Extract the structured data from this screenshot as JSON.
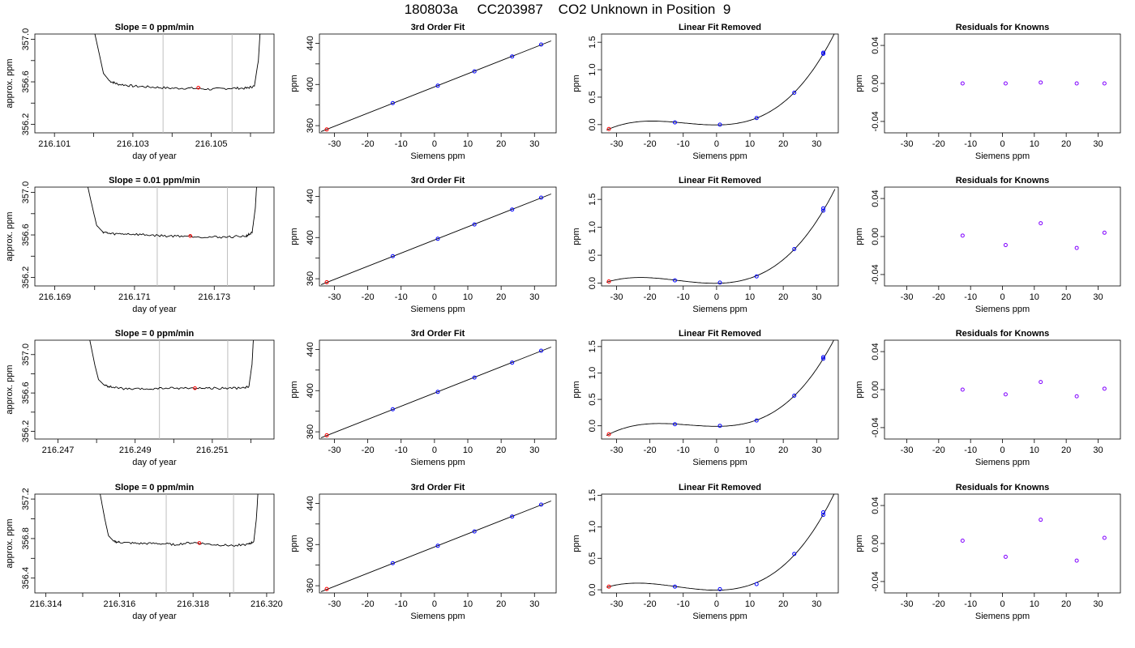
{
  "title": "180803a     CC203987    CO2 Unknown in Position  9",
  "colors": {
    "fit_line": "#000000",
    "blue_points": "#0000ff",
    "red_points": "#ff0000",
    "residual_points": "#8000ff",
    "marker_lines": "#bebebe"
  },
  "chart_data": [
    {
      "type": "line",
      "row": 1,
      "panel": "time series",
      "title": "Slope =  0  ppm/min",
      "xlabel": "day of year",
      "ylabel": "approx. ppm",
      "xlim": [
        216.1005,
        216.1066
      ],
      "ylim": [
        356.12,
        357.05
      ],
      "xticks": [
        216.101,
        216.102,
        216.103,
        216.104,
        216.105,
        216.106
      ],
      "xtick_labels": [
        "216.101",
        "",
        "216.103",
        "",
        "216.105",
        ""
      ],
      "yticks": [
        356.2,
        356.4,
        356.6,
        356.8,
        357.0
      ],
      "ytick_labels": [
        "356.2",
        "",
        "356.6",
        "",
        "357.0"
      ],
      "vlines": [
        216.10377,
        216.10553
      ],
      "series": [
        {
          "x": [
            216.102,
            216.10215,
            216.10225,
            216.1024,
            216.1026,
            216.103,
            216.1035,
            216.104,
            216.1045,
            216.105,
            216.1055,
            216.1059,
            216.1061,
            216.1062,
            216.10625
          ],
          "y": [
            357.1,
            356.85,
            356.68,
            356.61,
            356.58,
            356.56,
            356.55,
            356.54,
            356.54,
            356.53,
            356.54,
            356.54,
            356.56,
            356.8,
            357.1
          ]
        }
      ],
      "mean_point": [
        216.10467,
        356.545
      ]
    },
    {
      "type": "scatter",
      "row": 1,
      "panel": "fit",
      "title": "3rd Order Fit",
      "xlabel": "Siemens ppm",
      "ylabel": "ppm",
      "xlim": [
        -34.5,
        36.5
      ],
      "ylim": [
        353,
        449
      ],
      "xticks": [
        -30,
        -20,
        -10,
        0,
        10,
        20,
        30
      ],
      "yticks": [
        360,
        380,
        400,
        420,
        440
      ],
      "ytick_labels": [
        "360",
        "",
        "400",
        "",
        "440"
      ],
      "points": [
        [
          -12.5,
          381.9
        ],
        [
          1.0,
          398.8
        ],
        [
          12.0,
          412.7
        ],
        [
          23.3,
          427.2
        ],
        [
          32.0,
          438.8
        ]
      ],
      "unknown_point": [
        -32.3,
        356.3
      ],
      "fit_x": [
        -34,
        35
      ]
    },
    {
      "type": "scatter",
      "row": 1,
      "panel": "linear removed",
      "title": "Linear Fit Removed",
      "xlabel": "Siemens ppm",
      "ylabel": "ppm",
      "xlim": [
        -34.5,
        36.5
      ],
      "ylim": [
        -0.15,
        1.65
      ],
      "xticks": [
        -30,
        -20,
        -10,
        0,
        10,
        20,
        30
      ],
      "yticks": [
        0.0,
        0.5,
        1.0,
        1.5
      ],
      "ytick_labels": [
        "0.0",
        "0.5",
        "1.0",
        "1.5"
      ],
      "points": [
        [
          -12.5,
          0.04
        ],
        [
          1.0,
          0.0
        ],
        [
          12.0,
          0.12
        ],
        [
          23.3,
          0.58
        ],
        [
          32.0,
          1.29
        ],
        [
          32.0,
          1.31
        ]
      ],
      "unknown_point": [
        -32.3,
        -0.08
      ],
      "curve": [
        -0.1,
        -0.2,
        -0.2,
        -0.3,
        -0.32,
        -0.12
      ]
    },
    {
      "type": "scatter",
      "row": 1,
      "panel": "residuals",
      "title": "Residuals for Knowns",
      "xlabel": "Siemens ppm",
      "ylabel": "ppm",
      "xlim": [
        -37,
        37
      ],
      "ylim": [
        -0.052,
        0.052
      ],
      "xticks": [
        -30,
        -20,
        -10,
        0,
        10,
        20,
        30
      ],
      "yticks": [
        -0.04,
        0.0,
        0.04
      ],
      "ytick_labels": [
        "-0.04",
        "0.00",
        "0.04"
      ],
      "points": [
        [
          -12.5,
          0.0
        ],
        [
          1.0,
          0.0
        ],
        [
          12.0,
          0.001
        ],
        [
          23.3,
          0.0
        ],
        [
          32.0,
          0.0
        ]
      ]
    },
    {
      "type": "line",
      "row": 2,
      "panel": "time series",
      "title": "Slope =  0.01  ppm/min",
      "xlabel": "day of year",
      "ylabel": "approx. ppm",
      "xlim": [
        216.1685,
        216.1745
      ],
      "ylim": [
        356.12,
        357.05
      ],
      "xticks": [
        216.169,
        216.17,
        216.171,
        216.172,
        216.173,
        216.174
      ],
      "xtick_labels": [
        "216.169",
        "",
        "216.171",
        "",
        "216.173",
        ""
      ],
      "yticks": [
        356.2,
        356.4,
        356.6,
        356.8,
        357.0
      ],
      "ytick_labels": [
        "356.2",
        "",
        "356.6",
        "",
        "357.0"
      ],
      "vlines": [
        216.17157,
        216.17333
      ],
      "series": [
        {
          "x": [
            216.1698,
            216.16995,
            216.17005,
            216.1702,
            216.1704,
            216.1708,
            216.1713,
            216.1718,
            216.1723,
            216.1728,
            216.1733,
            216.1738,
            216.17395,
            216.17403,
            216.17407
          ],
          "y": [
            357.1,
            356.85,
            356.69,
            356.63,
            356.61,
            356.61,
            356.6,
            356.59,
            356.59,
            356.58,
            356.58,
            356.59,
            356.62,
            356.85,
            357.1
          ]
        }
      ],
      "mean_point": [
        216.1724,
        356.59
      ]
    },
    {
      "type": "scatter",
      "row": 2,
      "panel": "fit",
      "title": "3rd Order Fit",
      "xlabel": "Siemens ppm",
      "ylabel": "ppm",
      "xlim": [
        -34.5,
        36.5
      ],
      "ylim": [
        353,
        449
      ],
      "xticks": [
        -30,
        -20,
        -10,
        0,
        10,
        20,
        30
      ],
      "yticks": [
        360,
        380,
        400,
        420,
        440
      ],
      "ytick_labels": [
        "360",
        "",
        "400",
        "",
        "440"
      ],
      "points": [
        [
          -12.5,
          381.9
        ],
        [
          1.0,
          398.8
        ],
        [
          12.0,
          412.7
        ],
        [
          23.3,
          427.2
        ],
        [
          32.0,
          438.8
        ]
      ],
      "unknown_point": [
        -32.3,
        356.6
      ],
      "fit_x": [
        -34,
        35
      ]
    },
    {
      "type": "scatter",
      "row": 2,
      "panel": "linear removed",
      "title": "Linear Fit Removed",
      "xlabel": "Siemens ppm",
      "ylabel": "ppm",
      "xlim": [
        -34.5,
        36.5
      ],
      "ylim": [
        -0.05,
        1.72
      ],
      "xticks": [
        -30,
        -20,
        -10,
        0,
        10,
        20,
        30
      ],
      "yticks": [
        0.0,
        0.5,
        1.0,
        1.5
      ],
      "ytick_labels": [
        "0.0",
        "0.5",
        "1.0",
        "1.5"
      ],
      "points": [
        [
          -12.5,
          0.05
        ],
        [
          1.0,
          0.01
        ],
        [
          12.0,
          0.12
        ],
        [
          23.3,
          0.61
        ],
        [
          32.0,
          1.3
        ],
        [
          32.0,
          1.34
        ]
      ],
      "unknown_point": [
        -32.3,
        0.03
      ]
    },
    {
      "type": "scatter",
      "row": 2,
      "panel": "residuals",
      "title": "Residuals for Knowns",
      "xlabel": "Siemens ppm",
      "ylabel": "ppm",
      "xlim": [
        -37,
        37
      ],
      "ylim": [
        -0.052,
        0.052
      ],
      "xticks": [
        -30,
        -20,
        -10,
        0,
        10,
        20,
        30
      ],
      "yticks": [
        -0.04,
        0.0,
        0.04
      ],
      "ytick_labels": [
        "-0.04",
        "0.00",
        "0.04"
      ],
      "points": [
        [
          -12.5,
          0.001
        ],
        [
          1.0,
          -0.009
        ],
        [
          12.0,
          0.014
        ],
        [
          23.3,
          -0.012
        ],
        [
          32.0,
          0.004
        ]
      ]
    },
    {
      "type": "line",
      "row": 3,
      "panel": "time series",
      "title": "Slope =  0  ppm/min",
      "xlabel": "day of year",
      "ylabel": "approx. ppm",
      "xlim": [
        216.2464,
        216.2526
      ],
      "ylim": [
        356.12,
        357.15
      ],
      "xticks": [
        216.247,
        216.248,
        216.249,
        216.25,
        216.251,
        216.252
      ],
      "xtick_labels": [
        "216.247",
        "",
        "216.249",
        "",
        "216.251",
        ""
      ],
      "yticks": [
        356.2,
        356.4,
        356.6,
        356.8,
        357.0
      ],
      "ytick_labels": [
        "356.2",
        "",
        "356.6",
        "",
        "357.0"
      ],
      "vlines": [
        216.24963,
        216.2514
      ],
      "series": [
        {
          "x": [
            216.2478,
            216.24795,
            216.24805,
            216.2482,
            216.2484,
            216.2488,
            216.2493,
            216.2498,
            216.2503,
            216.2508,
            216.2513,
            216.2518,
            216.25195,
            216.25203,
            216.25207
          ],
          "y": [
            357.2,
            356.9,
            356.74,
            356.68,
            356.66,
            356.64,
            356.64,
            356.65,
            356.65,
            356.65,
            356.65,
            356.65,
            356.67,
            356.9,
            357.2
          ]
        }
      ],
      "mean_point": [
        216.25055,
        356.65
      ]
    },
    {
      "type": "scatter",
      "row": 3,
      "panel": "fit",
      "title": "3rd Order Fit",
      "xlabel": "Siemens ppm",
      "ylabel": "ppm",
      "xlim": [
        -34.5,
        36.5
      ],
      "ylim": [
        353,
        449
      ],
      "xticks": [
        -30,
        -20,
        -10,
        0,
        10,
        20,
        30
      ],
      "yticks": [
        360,
        380,
        400,
        420,
        440
      ],
      "ytick_labels": [
        "360",
        "",
        "400",
        "",
        "440"
      ],
      "points": [
        [
          -12.5,
          381.9
        ],
        [
          1.0,
          398.8
        ],
        [
          12.0,
          412.7
        ],
        [
          23.3,
          427.2
        ],
        [
          32.0,
          438.8
        ]
      ],
      "unknown_point": [
        -32.3,
        356.6
      ],
      "fit_x": [
        -34,
        35
      ]
    },
    {
      "type": "scatter",
      "row": 3,
      "panel": "linear removed",
      "title": "Linear Fit Removed",
      "xlabel": "Siemens ppm",
      "ylabel": "ppm",
      "xlim": [
        -34.5,
        36.5
      ],
      "ylim": [
        -0.25,
        1.62
      ],
      "xticks": [
        -30,
        -20,
        -10,
        0,
        10,
        20,
        30
      ],
      "yticks": [
        0.0,
        0.5,
        1.0,
        1.5
      ],
      "ytick_labels": [
        "0.0",
        "0.5",
        "1.0",
        "1.5"
      ],
      "points": [
        [
          -12.5,
          0.03
        ],
        [
          1.0,
          0.0
        ],
        [
          12.0,
          0.1
        ],
        [
          23.3,
          0.57
        ],
        [
          32.0,
          1.27
        ],
        [
          32.0,
          1.3
        ]
      ],
      "unknown_point": [
        -32.3,
        -0.16
      ]
    },
    {
      "type": "scatter",
      "row": 3,
      "panel": "residuals",
      "title": "Residuals for Knowns",
      "xlabel": "Siemens ppm",
      "ylabel": "ppm",
      "xlim": [
        -37,
        37
      ],
      "ylim": [
        -0.052,
        0.052
      ],
      "xticks": [
        -30,
        -20,
        -10,
        0,
        10,
        20,
        30
      ],
      "yticks": [
        -0.04,
        0.0,
        0.04
      ],
      "ytick_labels": [
        "-0.04",
        "0.00",
        "0.04"
      ],
      "points": [
        [
          -12.5,
          0.0
        ],
        [
          1.0,
          -0.005
        ],
        [
          12.0,
          0.008
        ],
        [
          23.3,
          -0.007
        ],
        [
          32.0,
          0.001
        ]
      ]
    },
    {
      "type": "line",
      "row": 4,
      "panel": "time series",
      "title": "Slope =  0  ppm/min",
      "xlabel": "day of year",
      "ylabel": "approx. ppm",
      "xlim": [
        216.3137,
        216.3202
      ],
      "ylim": [
        356.25,
        357.25
      ],
      "xticks": [
        216.314,
        216.315,
        216.316,
        216.317,
        216.318,
        216.319,
        216.32
      ],
      "xtick_labels": [
        "216.314",
        "",
        "216.316",
        "",
        "216.318",
        "",
        "216.320"
      ],
      "yticks": [
        356.4,
        356.6,
        356.8,
        357.0,
        357.2
      ],
      "ytick_labels": [
        "356.4",
        "",
        "356.8",
        "",
        "357.2"
      ],
      "vlines": [
        216.31727,
        216.3191
      ],
      "series": [
        {
          "x": [
            216.31545,
            216.3156,
            216.3157,
            216.31585,
            216.31605,
            216.3165,
            216.317,
            216.3175,
            216.318,
            216.3185,
            216.319,
            216.3195,
            216.31965,
            216.31972,
            216.31977
          ],
          "y": [
            357.3,
            357.0,
            356.83,
            356.77,
            356.76,
            356.75,
            356.75,
            356.74,
            356.76,
            356.74,
            356.73,
            356.74,
            356.77,
            357.0,
            357.3
          ]
        }
      ],
      "mean_point": [
        216.31817,
        356.755
      ]
    },
    {
      "type": "scatter",
      "row": 4,
      "panel": "fit",
      "title": "3rd Order Fit",
      "xlabel": "Siemens ppm",
      "ylabel": "ppm",
      "xlim": [
        -34.5,
        36.5
      ],
      "ylim": [
        353,
        449
      ],
      "xticks": [
        -30,
        -20,
        -10,
        0,
        10,
        20,
        30
      ],
      "yticks": [
        360,
        380,
        400,
        420,
        440
      ],
      "ytick_labels": [
        "360",
        "",
        "400",
        "",
        "440"
      ],
      "points": [
        [
          -12.5,
          381.9
        ],
        [
          1.0,
          398.8
        ],
        [
          12.0,
          412.7
        ],
        [
          23.3,
          427.2
        ],
        [
          32.0,
          438.8
        ]
      ],
      "unknown_point": [
        -32.3,
        356.8
      ],
      "fit_x": [
        -34,
        35
      ]
    },
    {
      "type": "scatter",
      "row": 4,
      "panel": "linear removed",
      "title": "Linear Fit Removed",
      "xlabel": "Siemens ppm",
      "ylabel": "ppm",
      "xlim": [
        -34.5,
        36.5
      ],
      "ylim": [
        -0.05,
        1.52
      ],
      "xticks": [
        -30,
        -20,
        -10,
        0,
        10,
        20,
        30
      ],
      "yticks": [
        0.0,
        0.5,
        1.0,
        1.5
      ],
      "ytick_labels": [
        "0.0",
        "0.5",
        "1.0",
        "1.5"
      ],
      "points": [
        [
          -12.5,
          0.05
        ],
        [
          1.0,
          0.01
        ],
        [
          12.0,
          0.09
        ],
        [
          23.3,
          0.57
        ],
        [
          32.0,
          1.19
        ],
        [
          32.0,
          1.23
        ]
      ],
      "unknown_point": [
        -32.3,
        0.05
      ]
    },
    {
      "type": "scatter",
      "row": 4,
      "panel": "residuals",
      "title": "Residuals for Knowns",
      "xlabel": "Siemens ppm",
      "ylabel": "ppm",
      "xlim": [
        -37,
        37
      ],
      "ylim": [
        -0.052,
        0.052
      ],
      "xticks": [
        -30,
        -20,
        -10,
        0,
        10,
        20,
        30
      ],
      "yticks": [
        -0.04,
        0.0,
        0.04
      ],
      "ytick_labels": [
        "-0.04",
        "0.00",
        "0.04"
      ],
      "points": [
        [
          -12.5,
          0.003
        ],
        [
          1.0,
          -0.014
        ],
        [
          12.0,
          0.025
        ],
        [
          23.3,
          -0.018
        ],
        [
          32.0,
          0.006
        ]
      ]
    }
  ]
}
